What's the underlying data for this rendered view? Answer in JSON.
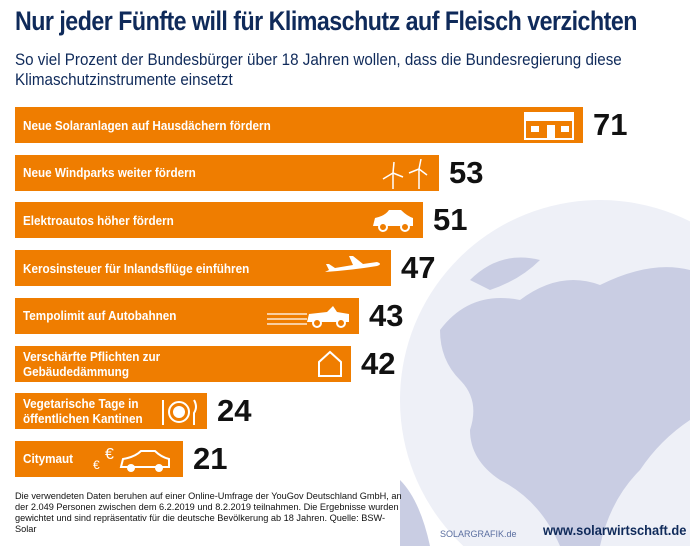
{
  "chart_data": {
    "type": "bar",
    "orientation": "horizontal",
    "title": "Nur jeder Fünfte will für Klimaschutz auf Fleisch verzichten",
    "subtitle": "So viel Prozent der Bundesbürger über 18 Jahren wollen, dass die Bundesregierung diese Klimaschutzinstrumente einsetzt",
    "categories": [
      "Neue Solaranlagen auf Hausdächern fördern",
      "Neue Windparks weiter fördern",
      "Elektroautos höher fördern",
      "Kerosinsteuer für Inlandsflüge einführen",
      "Tempolimit auf Autobahnen",
      "Verschärfte Pflichten zur\nGebäudedämmung",
      "Vegetarische Tage in\nöffentlichen Kantinen",
      "Citymaut"
    ],
    "values": [
      71,
      53,
      51,
      47,
      43,
      42,
      24,
      21
    ],
    "icons": [
      "house-solar-icon",
      "wind-turbine-icon",
      "electric-car-icon",
      "airplane-icon",
      "convertible-car-icon",
      "house-outline-icon",
      "plate-cutlery-icon",
      "euro-car-icon"
    ],
    "unit": "%",
    "bar_color": "#ef7d00",
    "xlim": [
      0,
      100
    ]
  },
  "footer": {
    "note": "Die verwendeten Daten beruhen auf einer Online-Umfrage der YouGov Deutschland GmbH, an der 2.049 Personen zwischen dem 6.2.2019 und 8.2.2019 teilnahmen. Die Ergebnisse wurden gewichtet und sind repräsentativ für die deutsche Bevölkerung ab 18 Jahren. Quelle: BSW-Solar",
    "credit": "SOLARGRAFIK.de",
    "url": "www.solarwirtschaft.de"
  },
  "colors": {
    "title": "#0f2a5a",
    "globe": "#c9cde3"
  }
}
